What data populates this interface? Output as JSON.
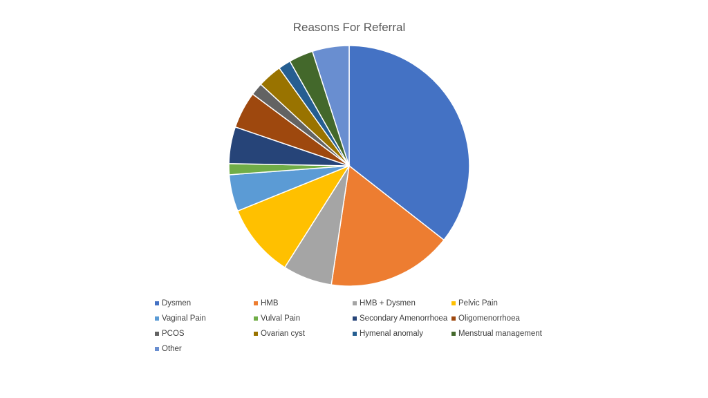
{
  "chart_data": {
    "type": "pie",
    "title": "Reasons For Referral",
    "categories": [
      "Dysmen",
      "HMB",
      "HMB + Dysmen",
      "Pelvic Pain",
      "Vaginal Pain",
      "Vulval Pain",
      "Secondary Amenorrhoea",
      "Oligomenorrhoea",
      "PCOS",
      "Ovarian cyst",
      "Hymenal anomaly",
      "Menstrual management",
      "Other"
    ],
    "values": [
      36.0,
      17.0,
      6.7,
      10.0,
      5.0,
      1.5,
      5.0,
      5.0,
      1.7,
      3.3,
      1.7,
      3.3,
      5.0
    ],
    "colors": [
      "#4472C4",
      "#ED7D31",
      "#A5A5A5",
      "#FFC000",
      "#5B9BD5",
      "#70AD47",
      "#264478",
      "#9E480E",
      "#636363",
      "#997300",
      "#255E91",
      "#43682B",
      "#698ED0"
    ],
    "start_angle_deg": 0,
    "direction": "clockwise",
    "legend_position": "bottom"
  }
}
